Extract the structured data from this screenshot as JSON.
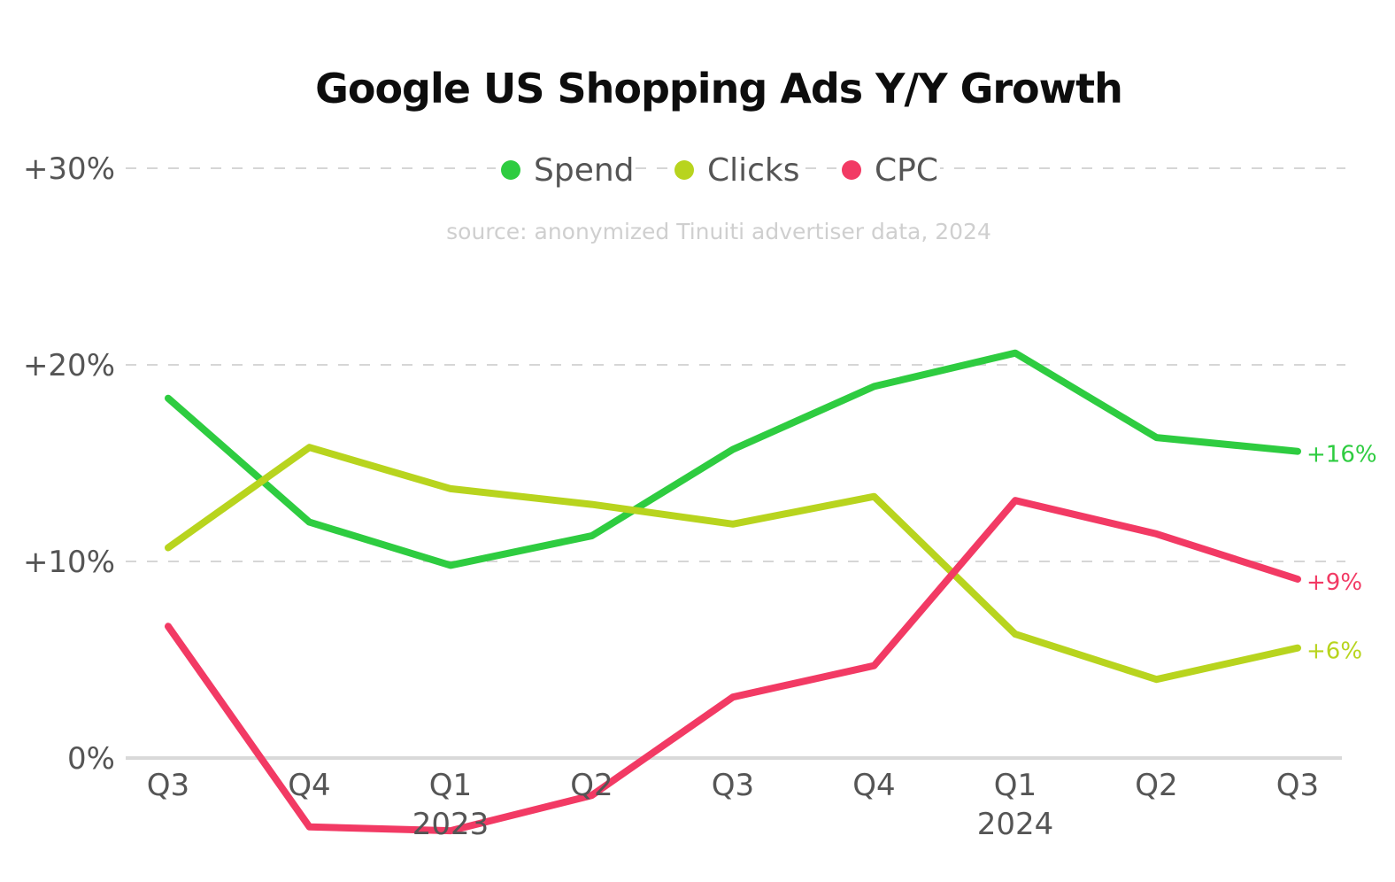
{
  "chart_data": {
    "type": "line",
    "title": "Google US Shopping Ads Y/Y Growth",
    "subtitle": "source: anonymized Tinuiti advertiser data, 2024",
    "xlabel": "",
    "ylabel": "",
    "categories": [
      "Q3",
      "Q4",
      "Q1",
      "Q2",
      "Q3",
      "Q4",
      "Q1",
      "Q2",
      "Q3"
    ],
    "year_labels": [
      {
        "index": 2,
        "label": "2023"
      },
      {
        "index": 6,
        "label": "2024"
      }
    ],
    "yticks": [
      {
        "value": 0,
        "label": "0%"
      },
      {
        "value": 10,
        "label": "+10%"
      },
      {
        "value": 20,
        "label": "+20%"
      },
      {
        "value": 30,
        "label": "+30%"
      }
    ],
    "ylim": [
      -4,
      30
    ],
    "grid": true,
    "legend_position": "top-center",
    "series": [
      {
        "name": "Spend",
        "color": "#2ecc40",
        "values": [
          18.3,
          12.0,
          9.8,
          11.3,
          15.7,
          18.9,
          20.6,
          16.3,
          15.6
        ],
        "end_label": "+16%"
      },
      {
        "name": "Clicks",
        "color": "#b8d41e",
        "values": [
          10.7,
          15.8,
          13.7,
          12.9,
          11.9,
          13.3,
          6.3,
          4.0,
          5.6
        ],
        "end_label": "+6%"
      },
      {
        "name": "CPC",
        "color": "#f23a64",
        "values": [
          6.7,
          -3.5,
          -3.7,
          -1.9,
          3.1,
          4.7,
          13.1,
          11.4,
          9.1
        ],
        "end_label": "+9%"
      }
    ]
  }
}
